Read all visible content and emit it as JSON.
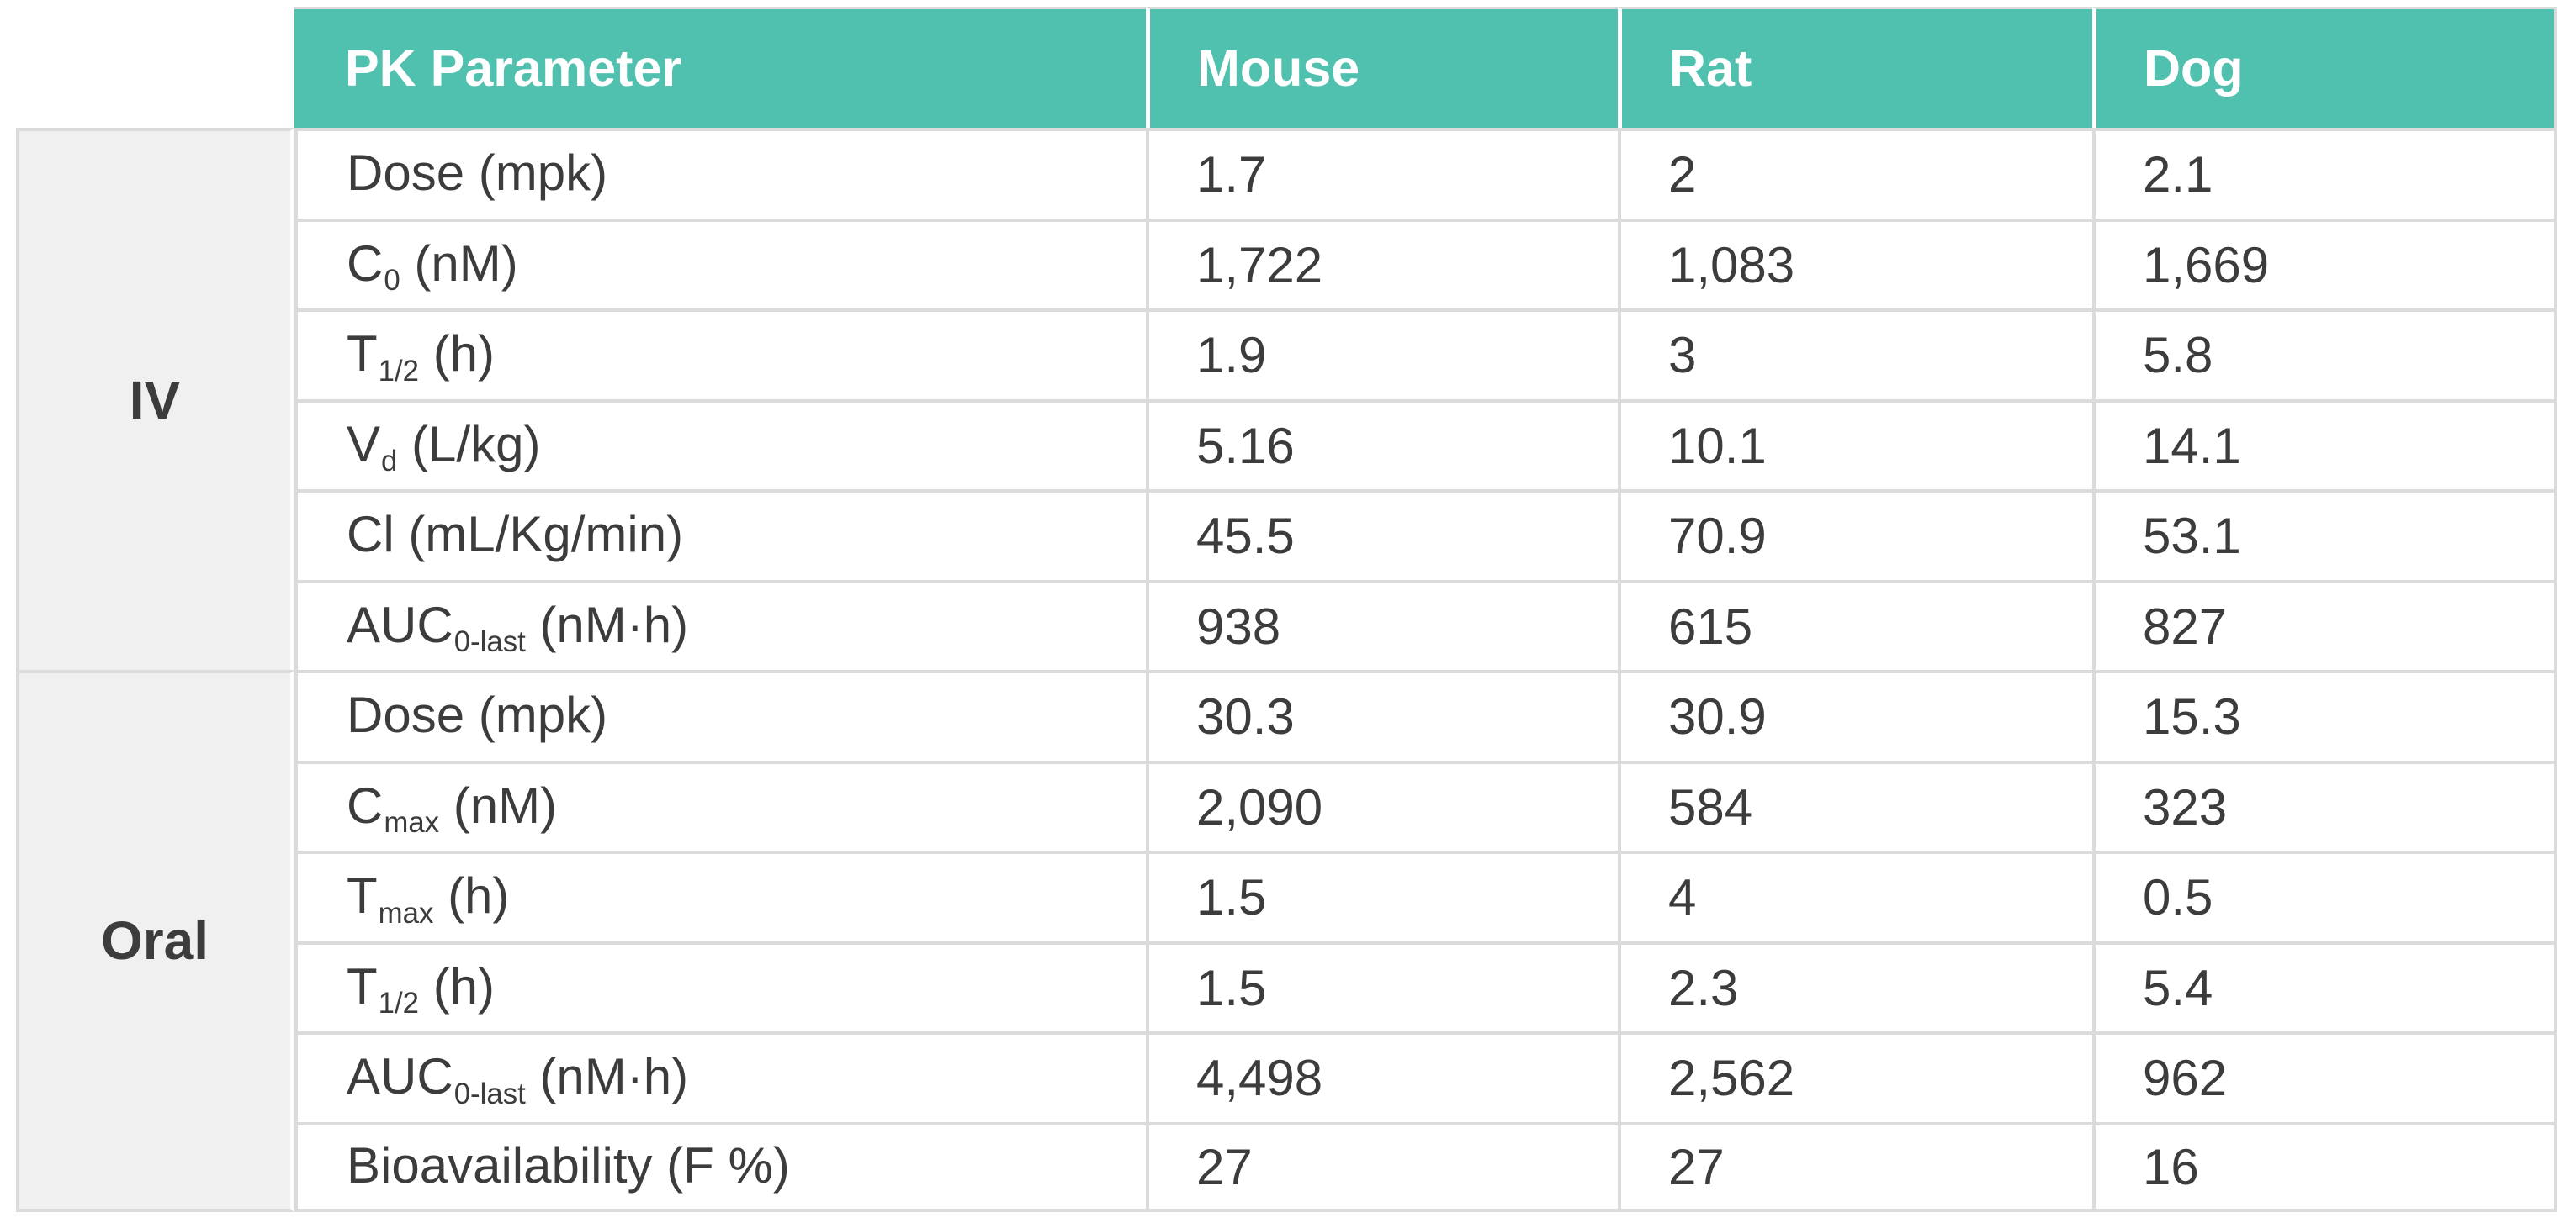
{
  "table": {
    "header": {
      "param_label": "PK Parameter",
      "species": [
        "Mouse",
        "Rat",
        "Dog"
      ]
    },
    "groups": [
      {
        "label": "IV",
        "rows": [
          {
            "base": "Dose (mpk)",
            "sub": "",
            "rest": "",
            "values": [
              "1.7",
              "2",
              "2.1"
            ]
          },
          {
            "base": "C",
            "sub": "0",
            "rest": " (nM)",
            "values": [
              "1,722",
              "1,083",
              "1,669"
            ]
          },
          {
            "base": "T",
            "sub": "1/2",
            "rest": " (h)",
            "values": [
              "1.9",
              "3",
              "5.8"
            ]
          },
          {
            "base": "V",
            "sub": "d",
            "rest": " (L/kg)",
            "values": [
              "5.16",
              "10.1",
              "14.1"
            ]
          },
          {
            "base": "Cl (mL/Kg/min)",
            "sub": "",
            "rest": "",
            "values": [
              "45.5",
              "70.9",
              "53.1"
            ]
          },
          {
            "base": "AUC",
            "sub": "0-last",
            "rest": " (nM·h)",
            "values": [
              "938",
              "615",
              "827"
            ]
          }
        ]
      },
      {
        "label": "Oral",
        "rows": [
          {
            "base": "Dose (mpk)",
            "sub": "",
            "rest": "",
            "values": [
              "30.3",
              "30.9",
              "15.3"
            ]
          },
          {
            "base": "C",
            "sub": "max",
            "rest": " (nM)",
            "values": [
              "2,090",
              "584",
              "323"
            ]
          },
          {
            "base": "T",
            "sub": "max",
            "rest": " (h)",
            "values": [
              "1.5",
              "4",
              "0.5"
            ]
          },
          {
            "base": "T",
            "sub": "1/2",
            "rest": " (h)",
            "values": [
              "1.5",
              "2.3",
              "5.4"
            ]
          },
          {
            "base": "AUC",
            "sub": "0-last",
            "rest": " (nM·h)",
            "values": [
              "4,498",
              "2,562",
              "962"
            ]
          },
          {
            "base": "Bioavailability (F %)",
            "sub": "",
            "rest": "",
            "values": [
              "27",
              "27",
              "16"
            ]
          }
        ]
      }
    ],
    "colors": {
      "header_bg": "#50c0af",
      "group_bg": "#f0f0f0",
      "border": "#dbdbdb",
      "text": "#3c3c3c",
      "header_text": "#ffffff"
    }
  }
}
